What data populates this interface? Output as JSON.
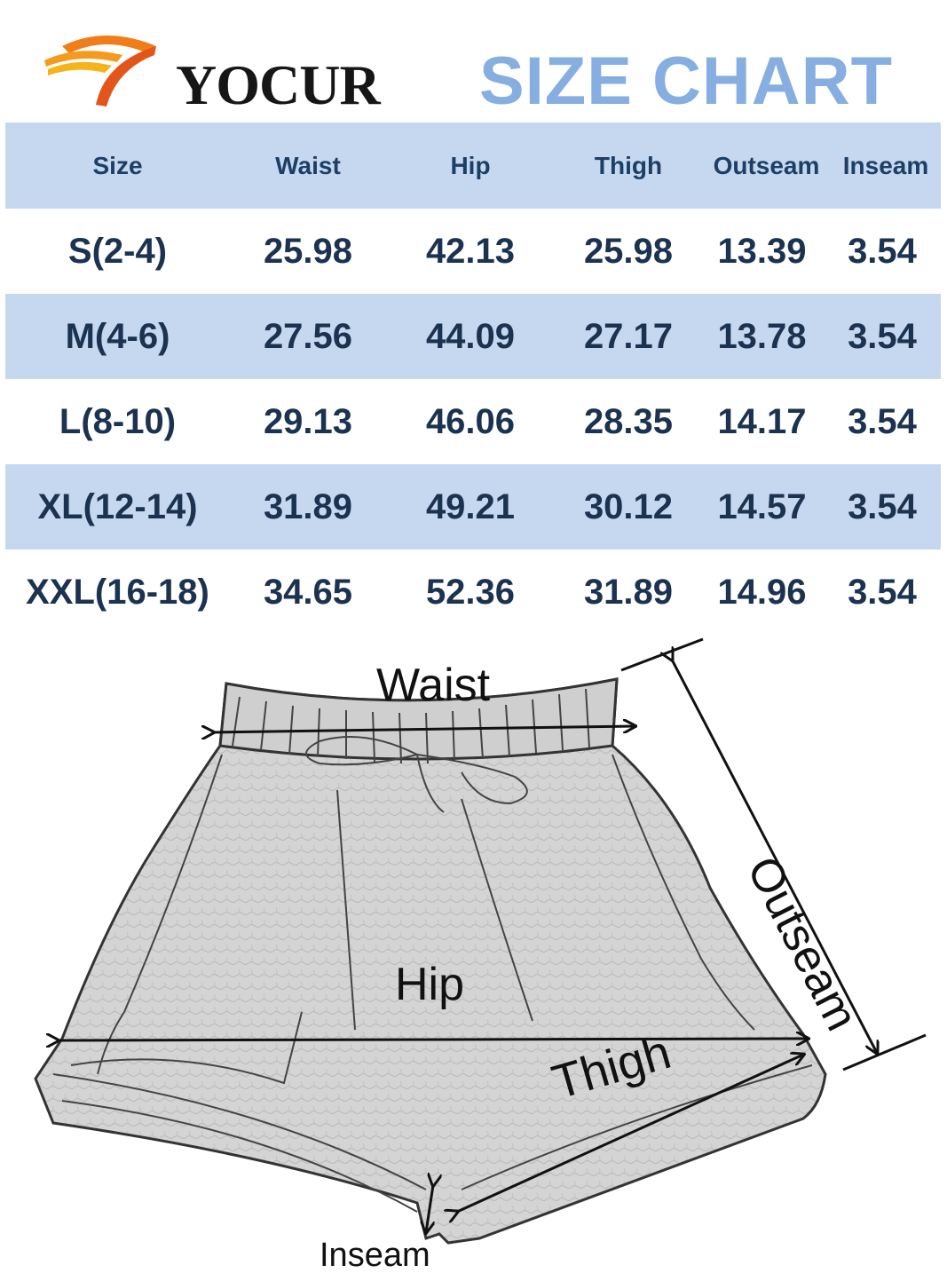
{
  "brand": {
    "name": "YOCUR"
  },
  "title": {
    "text": "SIZE CHART",
    "color": "#87aee0"
  },
  "colors": {
    "band": "#c5d8ef",
    "text": "#1b3250",
    "sketch": "#222222"
  },
  "table": {
    "headers": [
      "Size",
      "Waist",
      "Hip",
      "Thigh",
      "Outseam",
      "Inseam"
    ],
    "rows": [
      [
        "S(2-4)",
        "25.98",
        "42.13",
        "25.98",
        "13.39",
        "3.54"
      ],
      [
        "M(4-6)",
        "27.56",
        "44.09",
        "27.17",
        "13.78",
        "3.54"
      ],
      [
        "L(8-10)",
        "29.13",
        "46.06",
        "28.35",
        "14.17",
        "3.54"
      ],
      [
        "XL(12-14)",
        "31.89",
        "49.21",
        "30.12",
        "14.57",
        "3.54"
      ],
      [
        "XXL(16-18)",
        "34.65",
        "52.36",
        "31.89",
        "14.96",
        "3.54"
      ]
    ]
  },
  "diagram": {
    "labels": {
      "waist": "Waist",
      "hip": "Hip",
      "thigh": "Thigh",
      "outseam": "Outseam",
      "inseam": "Inseam"
    },
    "icon": "shorts-sketch-icon"
  }
}
